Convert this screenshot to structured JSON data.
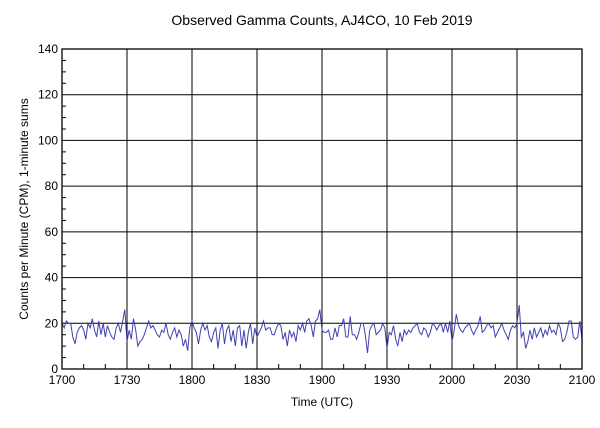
{
  "chart_data": {
    "type": "line",
    "title": "Observed Gamma Counts, AJ4CO, 10 Feb 2019",
    "xlabel": "Time (UTC)",
    "ylabel": "Counts per Minute (CPM), 1-minute sums",
    "xlim": [
      "1700",
      "2100"
    ],
    "ylim": [
      0,
      140
    ],
    "x_tick_labels": [
      "1700",
      "1730",
      "1800",
      "1830",
      "1900",
      "1930",
      "2000",
      "2030",
      "2100"
    ],
    "y_tick_labels": [
      "0",
      "20",
      "40",
      "60",
      "80",
      "100",
      "120",
      "140"
    ],
    "grid": true,
    "line_color": "#4040b0",
    "x_start": "1700",
    "x_step_minutes": 1,
    "series": [
      {
        "values": [
          20,
          18,
          21,
          20,
          20,
          14,
          11,
          16,
          18,
          19,
          17,
          13,
          20,
          18,
          22,
          17,
          14,
          21,
          15,
          20,
          14,
          19,
          16,
          14,
          13,
          18,
          20,
          16,
          21,
          26,
          12,
          17,
          13,
          22,
          17,
          10,
          12,
          13,
          15,
          18,
          21,
          18,
          19,
          17,
          15,
          14,
          17,
          16,
          20,
          15,
          13,
          16,
          18,
          14,
          17,
          15,
          10,
          13,
          8,
          18,
          21,
          18,
          16,
          11,
          17,
          20,
          17,
          19,
          14,
          12,
          16,
          18,
          9,
          17,
          20,
          11,
          17,
          19,
          12,
          17,
          10,
          18,
          19,
          10,
          17,
          9,
          16,
          20,
          11,
          18,
          14,
          16,
          18,
          21,
          17,
          18,
          18,
          15,
          15,
          18,
          20,
          19,
          13,
          16,
          10,
          17,
          14,
          16,
          12,
          19,
          17,
          20,
          16,
          21,
          22,
          19,
          14,
          21,
          22,
          26,
          17,
          16,
          16,
          17,
          13,
          13,
          18,
          14,
          19,
          19,
          22,
          14,
          14,
          23,
          15,
          15,
          13,
          16,
          20,
          20,
          15,
          7,
          17,
          19,
          20,
          15,
          16,
          17,
          20,
          18,
          9,
          16,
          15,
          19,
          13,
          10,
          16,
          12,
          17,
          15,
          17,
          16,
          18,
          19,
          20,
          16,
          15,
          18,
          17,
          14,
          16,
          20,
          19,
          17,
          19,
          20,
          16,
          20,
          16,
          21,
          12,
          17,
          24,
          19,
          17,
          16,
          18,
          19,
          20,
          17,
          15,
          17,
          19,
          23,
          16,
          17,
          19,
          20,
          18,
          19,
          14,
          16,
          18,
          20,
          17,
          15,
          13,
          17,
          19,
          18,
          20,
          28,
          14,
          16,
          9,
          12,
          17,
          13,
          18,
          14,
          16,
          18,
          14,
          17,
          15,
          19,
          16,
          17,
          15,
          20,
          18,
          12,
          13,
          16,
          21,
          21,
          14,
          13,
          14,
          21,
          13
        ]
      }
    ]
  }
}
